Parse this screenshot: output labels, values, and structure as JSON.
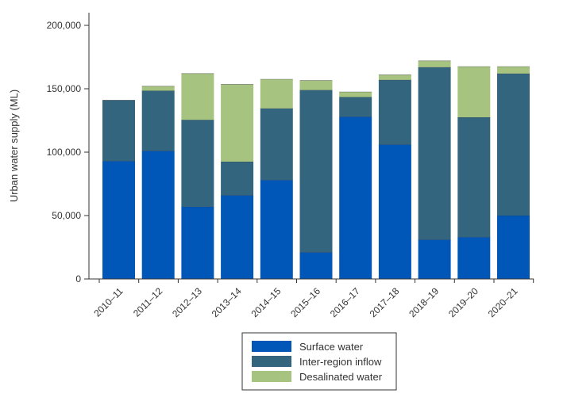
{
  "chart_data": {
    "type": "bar",
    "stacked": true,
    "categories": [
      "2010–11",
      "2011–12",
      "2012–13",
      "2013–14",
      "2014–15",
      "2015–16",
      "2016–17",
      "2017–18",
      "2018–19",
      "2019–20",
      "2020–21"
    ],
    "series": [
      {
        "name": "Surface water",
        "color": "#0057b8",
        "values": [
          93000,
          101000,
          57000,
          66000,
          78000,
          21000,
          128000,
          106000,
          31000,
          33000,
          50000
        ]
      },
      {
        "name": "Inter-region inflow",
        "color": "#34657f",
        "values": [
          48000,
          47500,
          68500,
          26500,
          56500,
          128000,
          15500,
          51000,
          136000,
          94500,
          112000
        ]
      },
      {
        "name": "Desalinated water",
        "color": "#a6c480",
        "values": [
          0,
          3500,
          36500,
          61000,
          23000,
          7500,
          4000,
          4000,
          5000,
          40000,
          5500
        ]
      }
    ],
    "ylabel": "Urban water supply (ML)",
    "xlabel": "",
    "ylim": [
      0,
      200000
    ],
    "yticks": [
      0,
      50000,
      100000,
      150000,
      200000
    ],
    "ytick_labels": [
      "0",
      "50,000",
      "100,000",
      "150,000",
      "200,000"
    ],
    "grid": false,
    "legend_position": "bottom-center"
  }
}
